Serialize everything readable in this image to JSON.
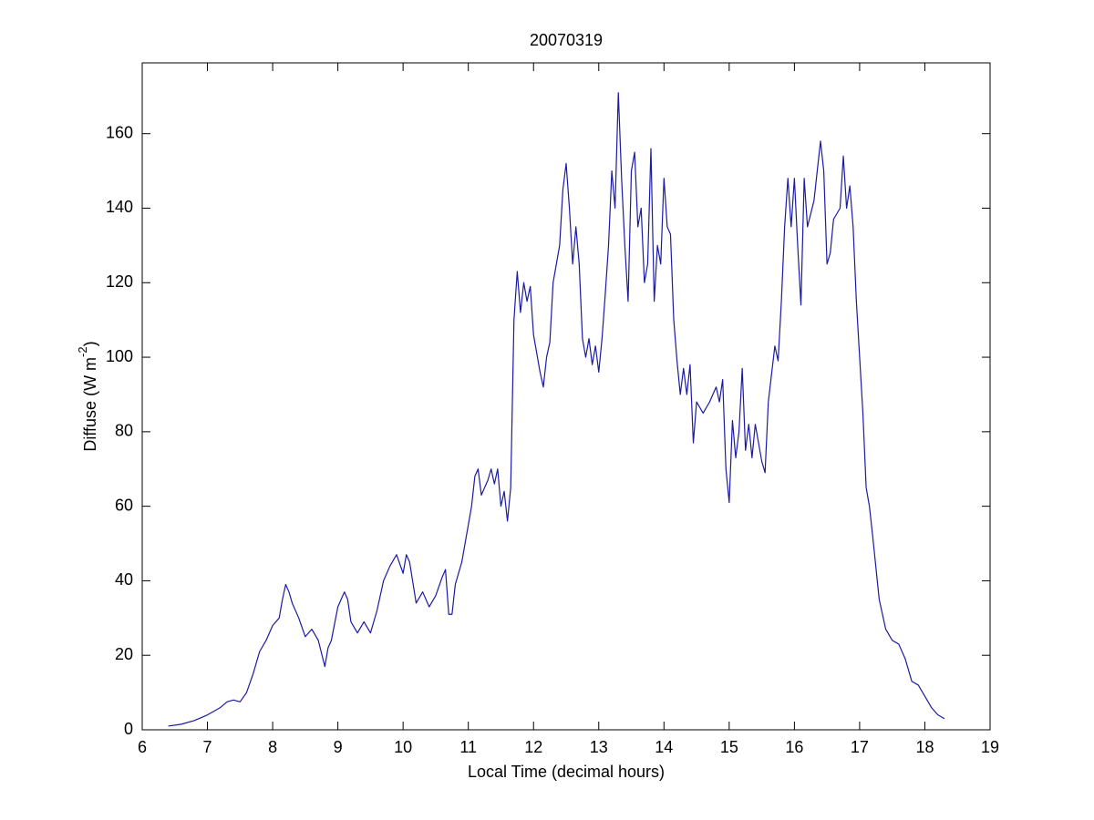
{
  "chart_data": {
    "type": "line",
    "title": "20070319",
    "xlabel": "Local Time (decimal hours)",
    "ylabel": "Diffuse (W m",
    "ylabel_sup": "-2",
    "ylabel_end": ")",
    "color": "#1a1aa6",
    "xlim": [
      6,
      19
    ],
    "xticks": [
      6,
      7,
      8,
      9,
      10,
      11,
      12,
      13,
      14,
      15,
      16,
      17,
      18,
      19
    ],
    "ylim": [
      0,
      179
    ],
    "yticks": [
      0,
      20,
      40,
      60,
      80,
      100,
      120,
      140,
      160
    ],
    "x": [
      6.4,
      6.6,
      6.8,
      7.0,
      7.2,
      7.3,
      7.4,
      7.5,
      7.6,
      7.7,
      7.8,
      7.9,
      8.0,
      8.1,
      8.15,
      8.2,
      8.25,
      8.3,
      8.4,
      8.5,
      8.6,
      8.7,
      8.8,
      8.85,
      8.9,
      9.0,
      9.05,
      9.1,
      9.15,
      9.2,
      9.3,
      9.4,
      9.5,
      9.6,
      9.7,
      9.8,
      9.9,
      10.0,
      10.05,
      10.1,
      10.2,
      10.3,
      10.4,
      10.5,
      10.6,
      10.65,
      10.7,
      10.75,
      10.8,
      10.9,
      11.0,
      11.05,
      11.1,
      11.15,
      11.2,
      11.3,
      11.35,
      11.4,
      11.45,
      11.5,
      11.55,
      11.6,
      11.65,
      11.7,
      11.75,
      11.8,
      11.85,
      11.9,
      11.95,
      12.0,
      12.1,
      12.15,
      12.2,
      12.25,
      12.3,
      12.4,
      12.45,
      12.5,
      12.55,
      12.6,
      12.65,
      12.7,
      12.75,
      12.8,
      12.85,
      12.9,
      12.95,
      13.0,
      13.05,
      13.1,
      13.15,
      13.2,
      13.25,
      13.3,
      13.35,
      13.4,
      13.45,
      13.5,
      13.55,
      13.6,
      13.65,
      13.7,
      13.75,
      13.8,
      13.85,
      13.9,
      13.95,
      14.0,
      14.05,
      14.1,
      14.15,
      14.2,
      14.25,
      14.3,
      14.35,
      14.4,
      14.45,
      14.5,
      14.6,
      14.7,
      14.8,
      14.85,
      14.9,
      14.95,
      15.0,
      15.05,
      15.1,
      15.15,
      15.2,
      15.25,
      15.3,
      15.35,
      15.4,
      15.5,
      15.55,
      15.6,
      15.7,
      15.75,
      15.8,
      15.85,
      15.9,
      15.95,
      16.0,
      16.05,
      16.1,
      16.15,
      16.2,
      16.3,
      16.35,
      16.4,
      16.45,
      16.5,
      16.55,
      16.6,
      16.7,
      16.75,
      16.8,
      16.85,
      16.9,
      16.95,
      17.0,
      17.05,
      17.1,
      17.15,
      17.2,
      17.3,
      17.4,
      17.5,
      17.6,
      17.7,
      17.8,
      17.9,
      18.0,
      18.1,
      18.2,
      18.3
    ],
    "values": [
      1,
      1.5,
      2.5,
      4,
      6,
      7.5,
      8,
      7.5,
      10,
      15,
      21,
      24,
      28,
      30,
      35,
      39,
      37,
      34,
      30,
      25,
      27,
      24,
      17,
      22,
      24,
      33,
      35,
      37,
      35,
      29,
      26,
      29,
      26,
      32,
      40,
      44,
      47,
      42,
      47,
      45,
      34,
      37,
      33,
      36,
      41,
      43,
      31,
      31,
      39,
      45,
      55,
      60,
      68,
      70,
      63,
      67,
      70,
      66,
      70,
      60,
      64,
      56,
      65,
      110,
      123,
      112,
      120,
      115,
      119,
      106,
      96,
      92,
      100,
      104,
      120,
      130,
      145,
      152,
      140,
      125,
      135,
      125,
      105,
      100,
      105,
      98,
      103,
      96,
      105,
      117,
      130,
      150,
      140,
      171,
      148,
      130,
      115,
      150,
      155,
      135,
      140,
      120,
      125,
      156,
      115,
      130,
      125,
      148,
      135,
      133,
      110,
      99,
      90,
      97,
      90,
      98,
      77,
      88,
      85,
      88,
      92,
      88,
      94,
      70,
      61,
      83,
      73,
      80,
      97,
      75,
      82,
      73,
      82,
      72,
      69,
      88,
      103,
      99,
      115,
      135,
      148,
      135,
      148,
      130,
      114,
      148,
      135,
      142,
      150,
      158,
      150,
      125,
      128,
      137,
      140,
      154,
      140,
      146,
      135,
      115,
      100,
      85,
      65,
      60,
      52,
      35,
      27,
      24,
      23,
      19,
      13,
      12,
      9,
      6,
      4,
      3
    ]
  }
}
